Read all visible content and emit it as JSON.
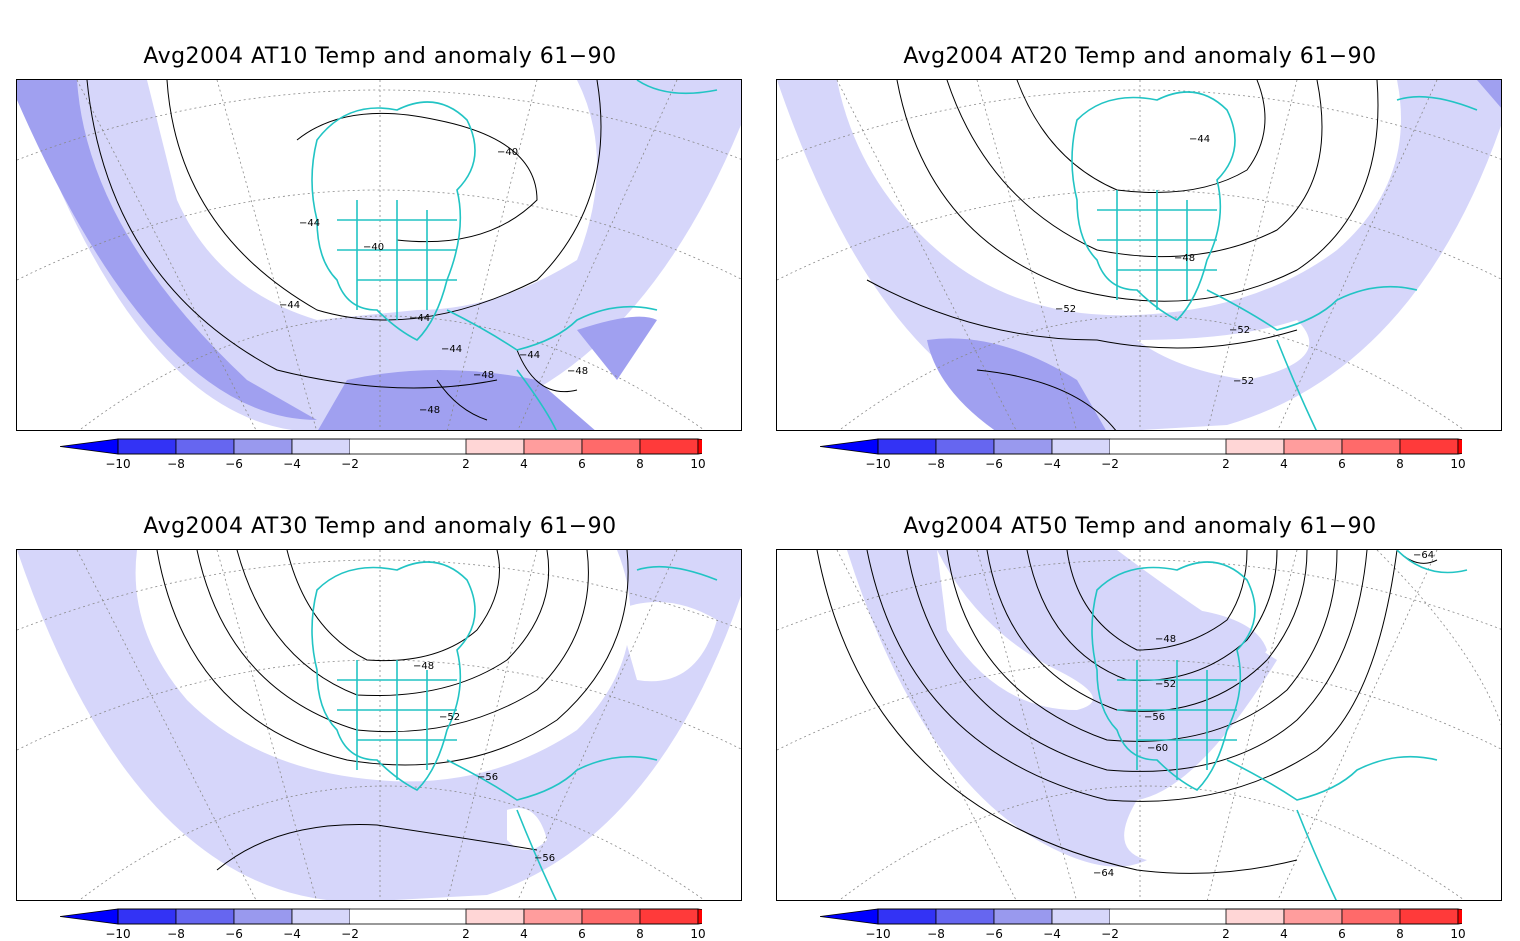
{
  "colorbar": {
    "labels": [
      "−10",
      "−8",
      "−6",
      "−4",
      "−2",
      "2",
      "4",
      "6",
      "8",
      "10"
    ],
    "negative_colors": [
      "#0000ff",
      "#3333f5",
      "#6666f0",
      "#9999ee",
      "#d6d6fa"
    ],
    "positive_colors": [
      "#ffd6d6",
      "#ff9d9d",
      "#ff6a6a",
      "#ff3a3a",
      "#ff0000"
    ],
    "neutral_color": "#ffffff"
  },
  "coastline_color": "#22c4c4",
  "panels": [
    {
      "title": "Avg2004 AT10 Temp and anomaly 61−90",
      "contour_labels": [
        "−40",
        "−44",
        "−40",
        "−44",
        "−44",
        "−44",
        "−44",
        "−48",
        "−48",
        "−48"
      ]
    },
    {
      "title": "Avg2004 AT20 Temp and anomaly 61−90",
      "contour_labels": [
        "−44",
        "−48",
        "−52",
        "−52",
        "−52"
      ]
    },
    {
      "title": "Avg2004 AT30 Temp and anomaly 61−90",
      "contour_labels": [
        "−48",
        "−52",
        "−56",
        "−56"
      ]
    },
    {
      "title": "Avg2004 AT50 Temp and anomaly 61−90",
      "contour_labels": [
        "−64",
        "−48",
        "−52",
        "−56",
        "−60",
        "−64"
      ]
    }
  ]
}
